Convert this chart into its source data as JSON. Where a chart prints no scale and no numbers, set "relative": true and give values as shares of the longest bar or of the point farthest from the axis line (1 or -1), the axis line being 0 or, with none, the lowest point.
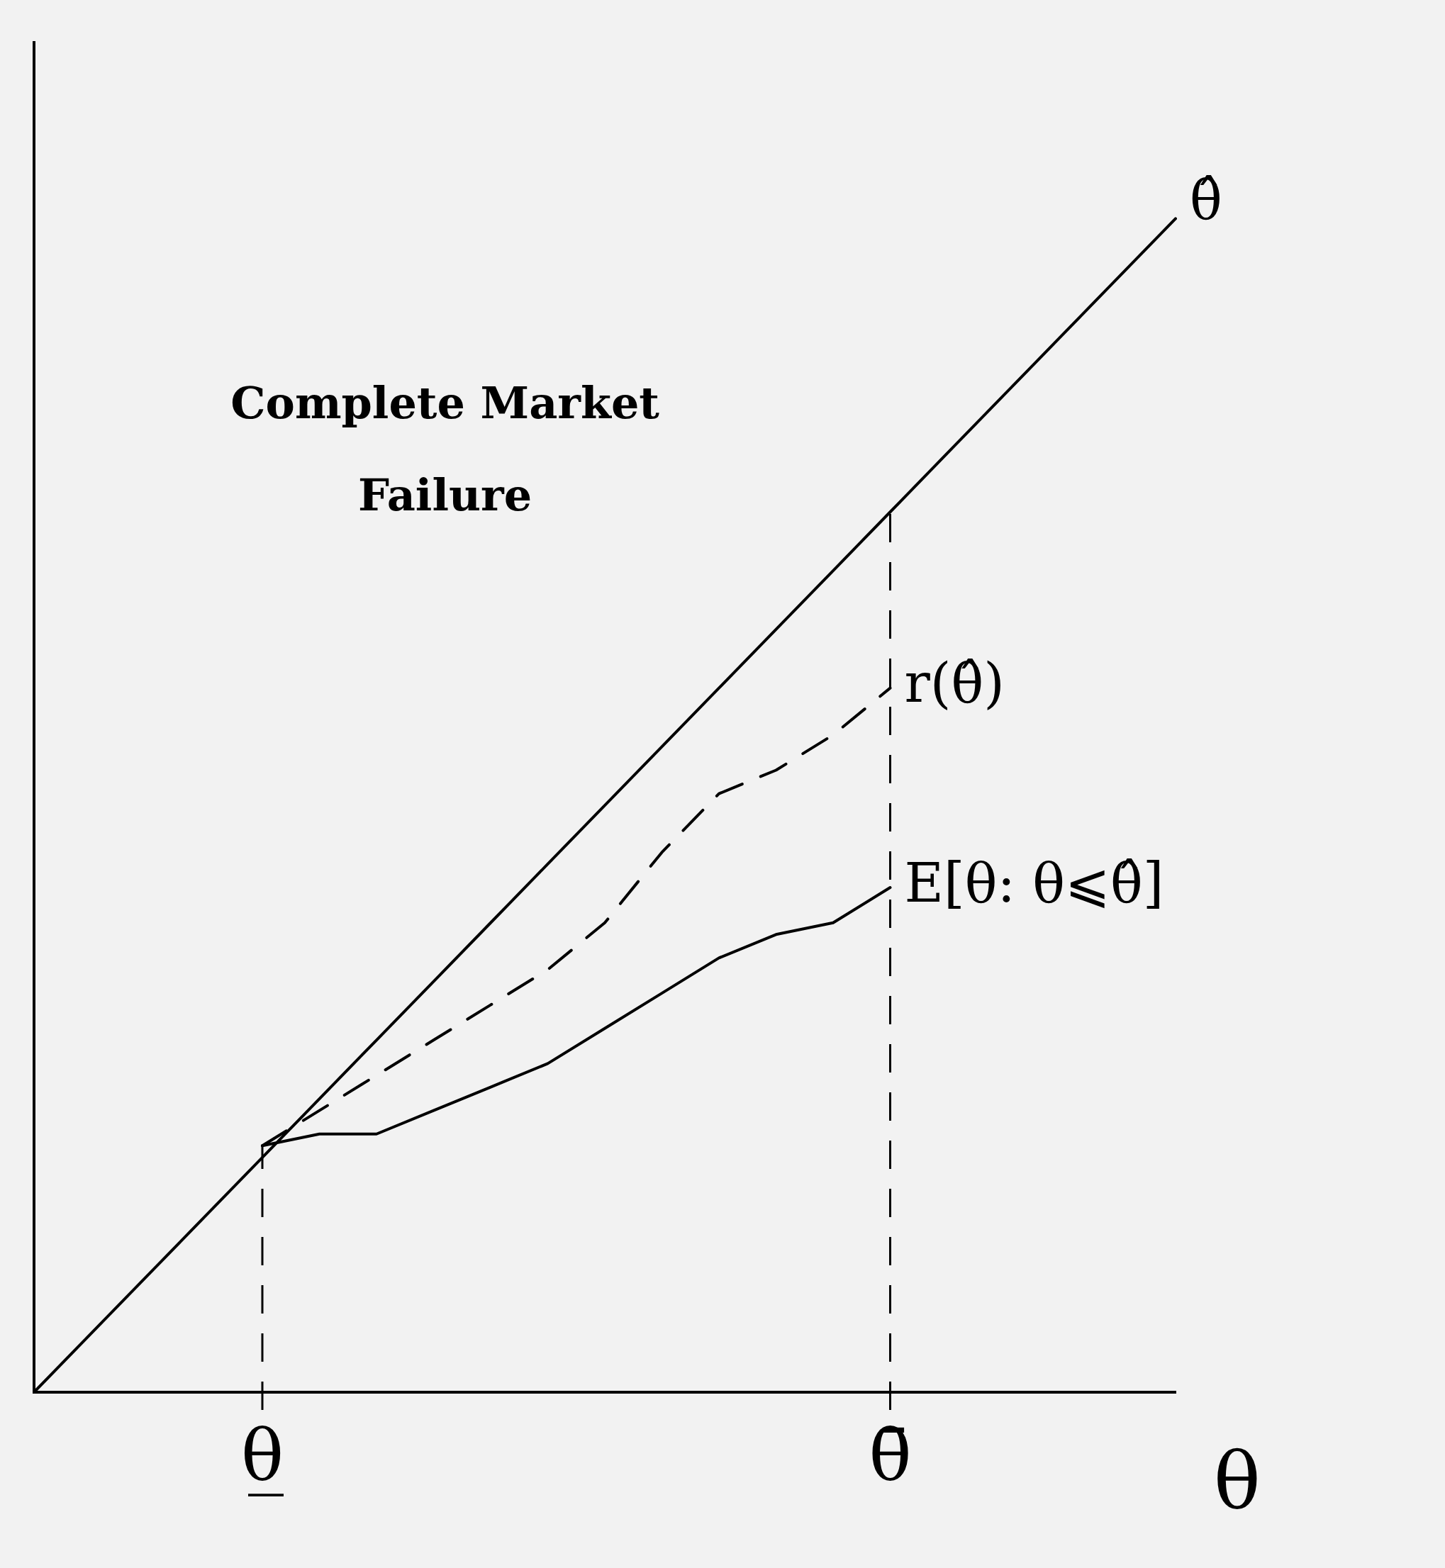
{
  "chart_data": {
    "type": "line",
    "relative": true,
    "xlabel": "θ",
    "annotations": [
      "Complete Market Failure"
    ],
    "categories": [
      null,
      null,
      null,
      null,
      "θ̲",
      null,
      null,
      null,
      null,
      null,
      null,
      null,
      null,
      null,
      null,
      "θ̄",
      null,
      null,
      null,
      null,
      null
    ],
    "ref_lines": [
      {
        "axis": "x",
        "value": "θ̲",
        "line_style": "dashed",
        "color": "#000000"
      },
      {
        "axis": "x",
        "value": "θ̄",
        "line_style": "dashed",
        "color": "#000000"
      }
    ],
    "legend": false,
    "marker": "none",
    "series": [
      {
        "name": "θ̂",
        "color": "#000000",
        "line_style": "solid",
        "values": [
          0,
          0.05,
          0.1,
          0.15,
          0.2,
          0.25,
          0.3,
          0.35,
          0.4,
          0.45,
          0.5,
          0.55,
          0.6,
          0.65,
          0.7,
          0.75,
          0.8,
          0.85,
          0.9,
          0.95,
          1
        ]
      },
      {
        "name": "r(θ̂)",
        "color": "#000000",
        "line_style": "dashed",
        "values": [
          null,
          null,
          null,
          null,
          0.21,
          0.24,
          0.27,
          0.3,
          0.33,
          0.36,
          0.4,
          0.46,
          0.51,
          0.53,
          0.56,
          0.6,
          null,
          null,
          null,
          null,
          null
        ]
      },
      {
        "name": "E[θ: θ⩽θ̂]",
        "color": "#000000",
        "line_style": "solid",
        "values": [
          null,
          null,
          null,
          null,
          0.21,
          0.22,
          0.22,
          0.24,
          0.26,
          0.28,
          0.31,
          0.34,
          0.37,
          0.39,
          0.4,
          0.43,
          null,
          null,
          null,
          null,
          null
        ]
      }
    ]
  }
}
